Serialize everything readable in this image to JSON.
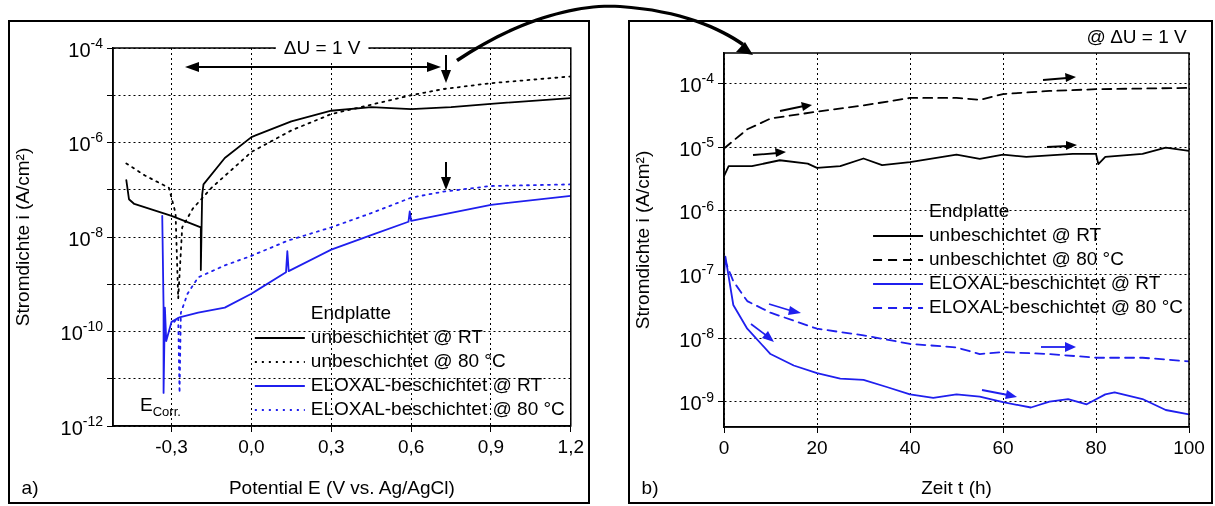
{
  "chart_data": [
    {
      "type": "line",
      "xlabel": "Potential E (V vs. Ag/AgCl)",
      "ylabel": "Stromdichte i (A/cm²)",
      "legend_title": "Endplatte",
      "legend": "bottom right",
      "grid": true,
      "log": "y",
      "annotations": [
        "ΔU = 1 V",
        "E$_{Corr.}$",
        "a)"
      ],
      "xlim": [
        -0.52,
        1.2
      ],
      "ylim": [
        1e-12,
        0.0001
      ],
      "xticks": [
        {
          "value": -0.3,
          "label": "-0,3"
        },
        {
          "value": 0,
          "label": "0,0"
        },
        {
          "value": 0.3,
          "label": "0,3"
        },
        {
          "value": 0.6,
          "label": "0,6"
        },
        {
          "value": 0.9,
          "label": "0,9"
        },
        {
          "value": 1.2,
          "label": "1,2"
        }
      ],
      "yticks": [
        {
          "value": 1e-12,
          "label": "10$^{-12}$"
        },
        {
          "value": 1e-11,
          "label": null
        },
        {
          "value": 1e-10,
          "label": "10$^{-10}$"
        },
        {
          "value": 1e-09,
          "label": null
        },
        {
          "value": 1e-08,
          "label": "10$^{-8}$"
        },
        {
          "value": 1e-07,
          "label": null
        },
        {
          "value": 1e-06,
          "label": "10$^{-6}$"
        },
        {
          "value": 1e-05,
          "label": null
        },
        {
          "value": 0.0001,
          "label": "10$^{-4}$"
        }
      ],
      "series": [
        {
          "name": "unbeschichtet @ RT",
          "color": "#000000",
          "line_style": "solid",
          "x": [
            -0.47,
            -0.46,
            -0.44,
            -0.3,
            -0.19,
            -0.19,
            -0.185,
            -0.18,
            -0.1,
            0,
            0.15,
            0.3,
            0.45,
            0.6,
            0.75,
            0.9,
            1.2
          ],
          "values": [
            1.6e-07,
            6.3e-08,
            5e-08,
            2.8e-08,
            1.6e-08,
            2e-09,
            7.9e-08,
            1.3e-07,
            4.7e-07,
            1.3e-06,
            2.8e-06,
            4.7e-06,
            5.6e-06,
            5.1e-06,
            5.6e-06,
            6.6e-06,
            8.7e-06
          ]
        },
        {
          "name": "unbeschichtet @ 80 °C",
          "color": "#000000",
          "line_style": "dotted",
          "x": [
            -0.47,
            -0.4,
            -0.31,
            -0.285,
            -0.275,
            -0.26,
            -0.22,
            -0.15,
            -0.05,
            0,
            0.15,
            0.3,
            0.45,
            0.6,
            0.72,
            0.9,
            1.2
          ],
          "values": [
            3.6e-07,
            2e-07,
            1.1e-07,
            3.2e-08,
            5e-10,
            1.6e-08,
            4e-08,
            1.1e-07,
            3.5e-07,
            6.3e-07,
            1.8e-06,
            4e-06,
            6.3e-06,
            1e-05,
            1.35e-05,
            1.8e-05,
            2.5e-05
          ]
        },
        {
          "name": "ELOXAL-beschichtet @ RT",
          "color": "#1f1fee",
          "line_style": "solid",
          "x": [
            -0.335,
            -0.33,
            -0.33,
            -0.325,
            -0.32,
            -0.3,
            -0.27,
            -0.2,
            -0.1,
            0,
            0.13,
            0.135,
            0.14,
            0.3,
            0.45,
            0.59,
            0.595,
            0.6,
            0.9,
            1.2
          ],
          "values": [
            2.8e-08,
            3.2e-10,
            5e-12,
            3.2e-10,
            6.3e-11,
            1.6e-10,
            2e-10,
            2.5e-10,
            3.2e-10,
            6.3e-10,
            1.8e-09,
            5e-09,
            1.9e-09,
            5.4e-09,
            1.1e-08,
            2.1e-08,
            3.5e-08,
            2.2e-08,
            4.8e-08,
            7.4e-08
          ]
        },
        {
          "name": "ELOXAL-beschichtet @ 80 °C",
          "color": "#1f1fee",
          "line_style": "dotted",
          "x": [
            -0.29,
            -0.275,
            -0.27,
            -0.265,
            -0.24,
            -0.2,
            -0.1,
            0,
            0.14,
            0.3,
            0.45,
            0.6,
            0.72,
            0.9,
            1.2
          ],
          "values": [
            1.6e-10,
            2e-10,
            5e-12,
            2.5e-10,
            6.3e-10,
            1.4e-09,
            2.5e-09,
            4e-09,
            8.5e-09,
            1.6e-08,
            3.2e-08,
            6.8e-08,
            9.1e-08,
            1.2e-07,
            1.3e-07
          ]
        }
      ]
    },
    {
      "type": "line",
      "xlabel": "Zeit t (h)",
      "ylabel": "Stromdichte i (A/cm²)",
      "legend_title": "Endplatte",
      "legend": "right",
      "grid": true,
      "log": "y",
      "annotations": [
        "@ ΔU = 1 V",
        "b)"
      ],
      "xlim": [
        0,
        100
      ],
      "ylim": [
        4e-10,
        0.0003
      ],
      "xticks": [
        0,
        20,
        40,
        60,
        80,
        100
      ],
      "yticks": [
        {
          "value": 1e-09,
          "label": "10$^{-9}$"
        },
        {
          "value": 1e-08,
          "label": "10$^{-8}$"
        },
        {
          "value": 1e-07,
          "label": "10$^{-7}$"
        },
        {
          "value": 1e-06,
          "label": "10$^{-6}$"
        },
        {
          "value": 1e-05,
          "label": "10$^{-5}$"
        },
        {
          "value": 0.0001,
          "label": "10$^{-4}$"
        }
      ],
      "series": [
        {
          "name": "unbeschichtet @ RT",
          "color": "#000000",
          "line_style": "solid",
          "x": [
            0,
            1,
            6,
            12,
            18,
            20,
            25,
            30,
            34,
            40,
            50,
            55,
            60,
            65,
            70,
            75,
            80,
            80.5,
            82,
            90,
            95,
            100
          ],
          "values": [
            3.5e-06,
            5e-06,
            5e-06,
            6.2e-06,
            5.5e-06,
            4.7e-06,
            5e-06,
            6.6e-06,
            5.2e-06,
            5.8e-06,
            7.6e-06,
            6.5e-06,
            7.6e-06,
            7e-06,
            7.4e-06,
            7.8e-06,
            7.8e-06,
            5.4e-06,
            7e-06,
            7.8e-06,
            9.8e-06,
            8.7e-06
          ]
        },
        {
          "name": "unbeschichtet @ 80 °C",
          "color": "#000000",
          "line_style": "dashed",
          "x": [
            0,
            5,
            10,
            20,
            30,
            40,
            50,
            55,
            60,
            70,
            80,
            100
          ],
          "values": [
            9.5e-06,
            1.9e-05,
            2.8e-05,
            3.6e-05,
            4.5e-05,
            5.9e-05,
            5.9e-05,
            5.5e-05,
            6.8e-05,
            7.6e-05,
            8.1e-05,
            8.5e-05
          ]
        },
        {
          "name": "ELOXAL-beschichtet @ RT",
          "color": "#1f1fee",
          "line_style": "solid",
          "x": [
            0,
            0.3,
            2,
            5,
            10,
            15,
            20,
            25,
            30,
            35,
            40,
            45,
            50,
            55,
            60,
            66,
            70,
            74,
            78,
            82,
            84,
            90,
            95,
            100
          ],
          "values": [
            9.5e-08,
            1.9e-07,
            3.3e-08,
            1.4e-08,
            5.6e-09,
            3.7e-09,
            2.8e-09,
            2.3e-09,
            2.2e-09,
            1.7e-09,
            1.3e-09,
            1.15e-09,
            1.3e-09,
            1.2e-09,
            9.8e-10,
            8.1e-10,
            1e-09,
            1.1e-09,
            9.1e-10,
            1.3e-09,
            1.4e-09,
            1.1e-09,
            7.4e-10,
            6.3e-10
          ]
        },
        {
          "name": "ELOXAL-beschichtet @ 80 °C",
          "color": "#1f1fee",
          "line_style": "dashed",
          "x": [
            0,
            2,
            5,
            10,
            20,
            30,
            40,
            50,
            55,
            60,
            70,
            80,
            90,
            100
          ],
          "values": [
            1.8e-07,
            7.8e-08,
            3.8e-08,
            2.5e-08,
            1.4e-08,
            1.1e-08,
            8.1e-09,
            7.1e-09,
            5.6e-09,
            6e-09,
            5.6e-09,
            4.9e-09,
            4.9e-09,
            4.3e-09
          ]
        }
      ]
    }
  ]
}
